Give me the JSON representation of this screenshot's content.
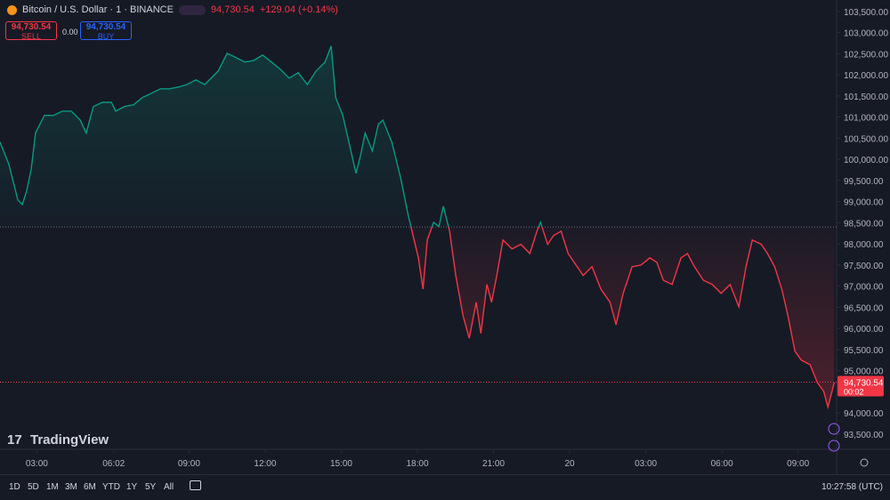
{
  "chart_data": {
    "type": "line",
    "title": "Bitcoin / U.S. Dollar · 1 · BINANCE",
    "change": "+129.04 (+0.14%)",
    "last": {
      "value": 94730.54,
      "label": "94,730.54"
    },
    "countdown": "00:02",
    "trade": {
      "sell": "SELL",
      "spread": "0.00",
      "buy": "BUY"
    },
    "logo": "TradingView",
    "ranges": [
      "1D",
      "5D",
      "1M",
      "3M",
      "6M",
      "YTD",
      "1Y",
      "5Y",
      "All"
    ],
    "clock": "10:27:58 (UTC)",
    "colors": {
      "up": "#089981",
      "down": "#f23645"
    },
    "baseline": 98400,
    "xlim": [
      1.55,
      34.45
    ],
    "xticks": [
      {
        "value": 3,
        "label": "03:00"
      },
      {
        "value": 6.03,
        "label": "06:02"
      },
      {
        "value": 9,
        "label": "09:00"
      },
      {
        "value": 12,
        "label": "12:00"
      },
      {
        "value": 15,
        "label": "15:00"
      },
      {
        "value": 18,
        "label": "18:00"
      },
      {
        "value": 21,
        "label": "21:00"
      },
      {
        "value": 24,
        "label": "20"
      },
      {
        "value": 27,
        "label": "03:00"
      },
      {
        "value": 30,
        "label": "06:00"
      },
      {
        "value": 33,
        "label": "09:00"
      }
    ],
    "ylim": [
      93140,
      103770
    ],
    "yticks": [
      {
        "value": 93500,
        "label": "93,500.00"
      },
      {
        "value": 94000,
        "label": "94,000.00"
      },
      {
        "value": 94500,
        "label": "94,500.00"
      },
      {
        "value": 95000,
        "label": "95,000.00"
      },
      {
        "value": 95500,
        "label": "95,500.00"
      },
      {
        "value": 96000,
        "label": "96,000.00"
      },
      {
        "value": 96500,
        "label": "96,500.00"
      },
      {
        "value": 97000,
        "label": "97,000.00"
      },
      {
        "value": 97500,
        "label": "97,500.00"
      },
      {
        "value": 98000,
        "label": "98,000.00"
      },
      {
        "value": 98500,
        "label": "98,500.00"
      },
      {
        "value": 99000,
        "label": "99,000.00"
      },
      {
        "value": 99500,
        "label": "99,500.00"
      },
      {
        "value": 100000,
        "label": "100,000.00"
      },
      {
        "value": 100500,
        "label": "100,500.00"
      },
      {
        "value": 101000,
        "label": "101,000.00"
      },
      {
        "value": 101500,
        "label": "101,500.00"
      },
      {
        "value": 102000,
        "label": "102,000.00"
      },
      {
        "value": 102500,
        "label": "102,500.00"
      },
      {
        "value": 103000,
        "label": "103,000.00"
      },
      {
        "value": 103500,
        "label": "103,500.00"
      }
    ],
    "x": [
      1.55,
      1.9,
      2.25,
      2.43,
      2.6,
      2.78,
      2.95,
      3.3,
      3.66,
      4.01,
      4.36,
      4.71,
      4.95,
      5.23,
      5.59,
      5.94,
      6.11,
      6.46,
      6.81,
      7.16,
      7.51,
      7.87,
      8.22,
      8.57,
      8.92,
      9.27,
      9.62,
      10.15,
      10.5,
      10.85,
      11.2,
      11.55,
      11.9,
      12.25,
      12.6,
      12.95,
      13.3,
      13.66,
      14.01,
      14.36,
      14.6,
      14.78,
      15.06,
      15.3,
      15.58,
      15.76,
      15.94,
      16.22,
      16.46,
      16.64,
      16.99,
      17.34,
      17.62,
      17.87,
      18.04,
      18.22,
      18.39,
      18.64,
      18.85,
      19.02,
      19.27,
      19.51,
      19.8,
      20.04,
      20.32,
      20.5,
      20.74,
      20.92,
      21.13,
      21.37,
      21.73,
      22.08,
      22.43,
      22.71,
      22.85,
      23.13,
      23.37,
      23.66,
      23.94,
      24.18,
      24.53,
      24.88,
      25.23,
      25.59,
      25.83,
      26.11,
      26.46,
      26.81,
      27.16,
      27.44,
      27.69,
      28.04,
      28.39,
      28.64,
      28.92,
      29.27,
      29.62,
      29.97,
      30.32,
      30.67,
      30.95,
      31.2,
      31.55,
      31.8,
      32.08,
      32.36,
      32.6,
      32.88,
      33.13,
      33.48,
      33.76,
      34.01,
      34.18,
      34.43
    ],
    "values": [
      100410,
      99880,
      99040,
      98930,
      99250,
      99770,
      100620,
      101040,
      101040,
      101140,
      101140,
      100930,
      100620,
      101250,
      101350,
      101350,
      101140,
      101250,
      101290,
      101460,
      101560,
      101670,
      101670,
      101710,
      101770,
      101880,
      101770,
      102090,
      102510,
      102410,
      102300,
      102340,
      102470,
      102300,
      102130,
      101920,
      102050,
      101770,
      102090,
      102300,
      102680,
      101460,
      101040,
      100410,
      99670,
      100090,
      100620,
      100200,
      100830,
      100930,
      100410,
      99560,
      98720,
      98090,
      97670,
      96930,
      98090,
      98510,
      98410,
      98890,
      98300,
      97250,
      96300,
      95770,
      96620,
      95880,
      97040,
      96620,
      97250,
      98090,
      97880,
      97990,
      97770,
      98300,
      98510,
      97990,
      98200,
      98300,
      97770,
      97560,
      97250,
      97460,
      96930,
      96620,
      96090,
      96830,
      97460,
      97500,
      97670,
      97560,
      97140,
      97040,
      97670,
      97770,
      97460,
      97140,
      97040,
      96830,
      97040,
      96510,
      97460,
      98090,
      97990,
      97770,
      97460,
      96930,
      96300,
      95460,
      95250,
      95140,
      94720,
      94510,
      94140,
      94720
    ]
  }
}
